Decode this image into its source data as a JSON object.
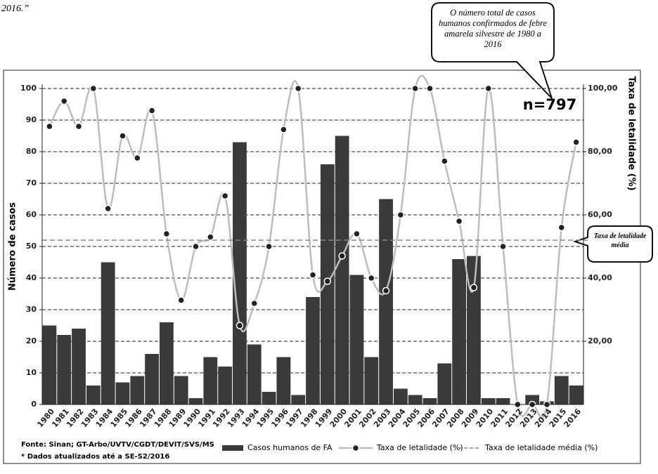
{
  "header_text": "2016.”",
  "chart_data": {
    "type": "bar-line",
    "y_label": "Número de casos",
    "y2_label": "Taxa de letalidade (%)",
    "categories": [
      "1980",
      "1981",
      "1982",
      "1983",
      "1984",
      "1985",
      "1986",
      "1987",
      "1988",
      "1989",
      "1990",
      "1991",
      "1992",
      "1993",
      "1994",
      "1995",
      "1996",
      "1997",
      "1998",
      "1999",
      "2000",
      "2001",
      "2002",
      "2003",
      "2004",
      "2005",
      "2006",
      "2007",
      "2008",
      "2009",
      "2010",
      "2011",
      "2012",
      "2013",
      "2014",
      "2015",
      "2016"
    ],
    "series": [
      {
        "name": "Casos humanos de FA",
        "type": "bar",
        "color": "#3a3a3a",
        "values": [
          25,
          22,
          24,
          6,
          45,
          7,
          9,
          16,
          26,
          9,
          2,
          15,
          12,
          83,
          19,
          4,
          15,
          3,
          34,
          76,
          85,
          41,
          15,
          65,
          5,
          3,
          2,
          13,
          46,
          47,
          2,
          2,
          0,
          3,
          1,
          9,
          6
        ]
      },
      {
        "name": "Taxa de letalidade (%)",
        "type": "line",
        "axis": "y2",
        "color": "#bdbdbd",
        "values": [
          88,
          96,
          88,
          100,
          62,
          85,
          78,
          93,
          54,
          33,
          50,
          53,
          66,
          25,
          32,
          50,
          87,
          100,
          41,
          39,
          47,
          54,
          40,
          36,
          60,
          100,
          100,
          77,
          58,
          37,
          100,
          50,
          0,
          0,
          0,
          56,
          83
        ]
      }
    ],
    "reference_line": {
      "name": "Taxa de letalidade média (%)",
      "value": 52,
      "axis": "y2",
      "color": "#888888",
      "label": "Taxa de letalidade média"
    },
    "annotation": {
      "text": "O número total de casos humanos confirmados de febre amarela silvestre de 1980 a 2016",
      "total": "n=797"
    },
    "ylim": [
      0,
      100
    ],
    "yticks": [
      0,
      10,
      20,
      30,
      40,
      50,
      60,
      70,
      80,
      90,
      100
    ],
    "y2lim": [
      0,
      100
    ],
    "y2ticks": [
      {
        "value": 20,
        "label": "20,00"
      },
      {
        "value": 40,
        "label": "40,00"
      },
      {
        "value": 60,
        "label": "60,00"
      },
      {
        "value": 80,
        "label": "80,00"
      },
      {
        "value": 100,
        "label": "100,00"
      }
    ],
    "grid": true,
    "source": "Fonte: Sinan; GT-Arbo/UVTV/CGDT/DEVIT/SVS/MS",
    "note": "* Dados atualizados até a SE-S2/2016"
  }
}
